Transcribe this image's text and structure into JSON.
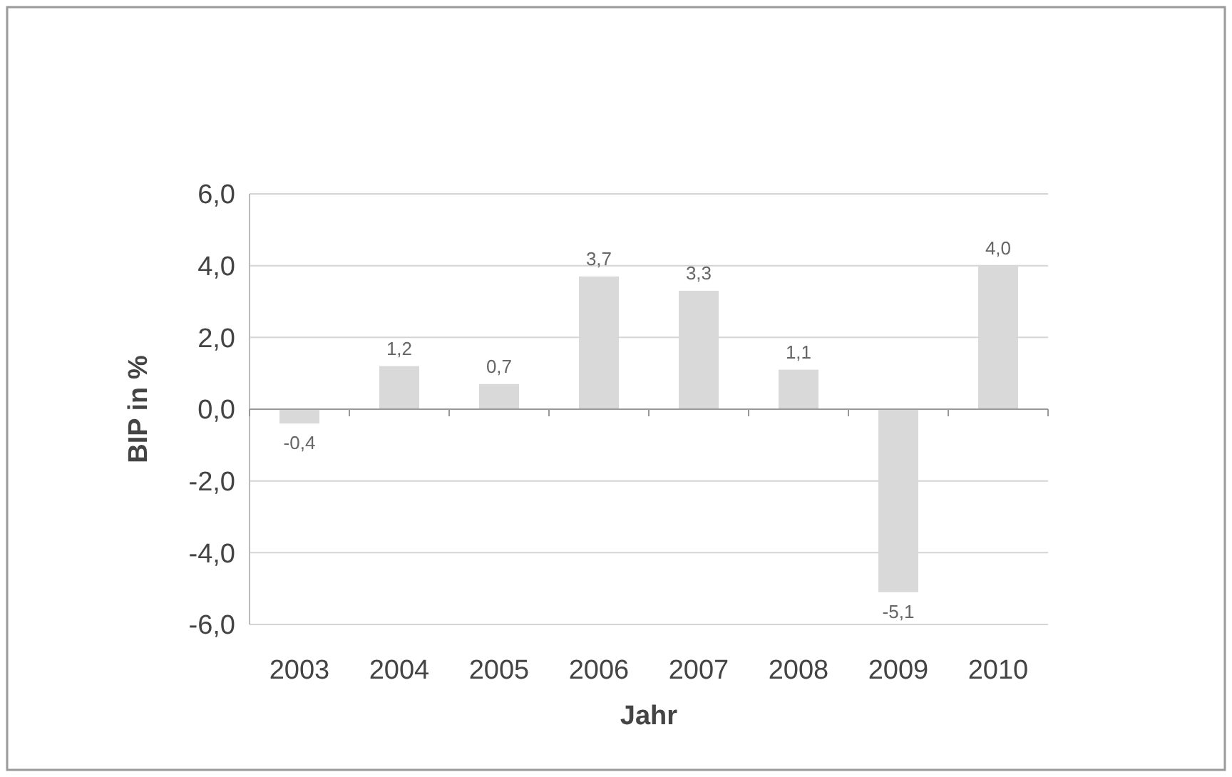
{
  "chart_data": {
    "type": "bar",
    "xlabel": "Jahr",
    "ylabel": "BIP in %",
    "categories": [
      "2003",
      "2004",
      "2005",
      "2006",
      "2007",
      "2008",
      "2009",
      "2010"
    ],
    "values": [
      -0.4,
      1.2,
      0.7,
      3.7,
      3.3,
      1.1,
      -5.1,
      4.0
    ],
    "value_labels": [
      "-0,4",
      "1,2",
      "0,7",
      "3,7",
      "3,3",
      "1,1",
      "-5,1",
      "4,0"
    ],
    "color": "#d9d9d9",
    "ylim": [
      -6,
      6
    ],
    "yticks": [
      {
        "value": -6,
        "label": "-6,0"
      },
      {
        "value": -4,
        "label": "-4,0"
      },
      {
        "value": -2,
        "label": "-2,0"
      },
      {
        "value": 0,
        "label": "0,0"
      },
      {
        "value": 2,
        "label": "2,0"
      },
      {
        "value": 4,
        "label": "4,0"
      },
      {
        "value": 6,
        "label": "6,0"
      }
    ],
    "grid": "y"
  }
}
